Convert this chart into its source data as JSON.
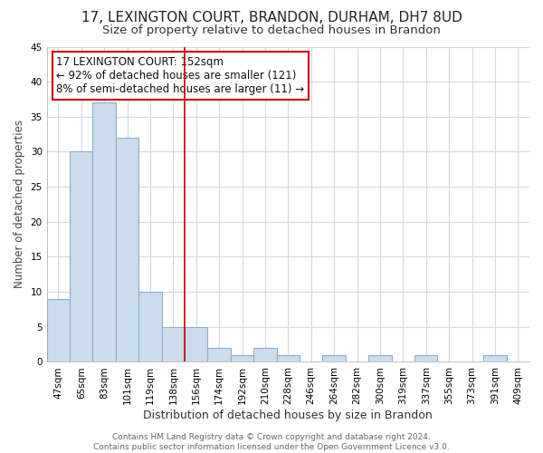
{
  "title1": "17, LEXINGTON COURT, BRANDON, DURHAM, DH7 8UD",
  "title2": "Size of property relative to detached houses in Brandon",
  "xlabel": "Distribution of detached houses by size in Brandon",
  "ylabel": "Number of detached properties",
  "categories": [
    "47sqm",
    "65sqm",
    "83sqm",
    "101sqm",
    "119sqm",
    "138sqm",
    "156sqm",
    "174sqm",
    "192sqm",
    "210sqm",
    "228sqm",
    "246sqm",
    "264sqm",
    "282sqm",
    "300sqm",
    "319sqm",
    "337sqm",
    "355sqm",
    "373sqm",
    "391sqm",
    "409sqm"
  ],
  "values": [
    9,
    30,
    37,
    32,
    10,
    5,
    5,
    2,
    1,
    2,
    1,
    0,
    1,
    0,
    1,
    0,
    1,
    0,
    0,
    1,
    0
  ],
  "bar_color": "#ccdcec",
  "bar_edge_color": "#8ab0cc",
  "reference_line_index": 6,
  "reference_line_color": "#cc0000",
  "ylim": [
    0,
    45
  ],
  "yticks": [
    0,
    5,
    10,
    15,
    20,
    25,
    30,
    35,
    40,
    45
  ],
  "annotation_text": "17 LEXINGTON COURT: 152sqm\n← 92% of detached houses are smaller (121)\n8% of semi-detached houses are larger (11) →",
  "annotation_box_color": "#ffffff",
  "annotation_box_edge_color": "#cc0000",
  "plot_bg_color": "#ffffff",
  "fig_bg_color": "#ffffff",
  "grid_color": "#d0d8e8",
  "footer_line1": "Contains HM Land Registry data © Crown copyright and database right 2024.",
  "footer_line2": "Contains public sector information licensed under the Open Government Licence v3.0.",
  "title1_fontsize": 11,
  "title2_fontsize": 9.5,
  "tick_fontsize": 7.5,
  "ylabel_fontsize": 8.5,
  "xlabel_fontsize": 9,
  "annotation_fontsize": 8.5,
  "footer_fontsize": 6.5
}
